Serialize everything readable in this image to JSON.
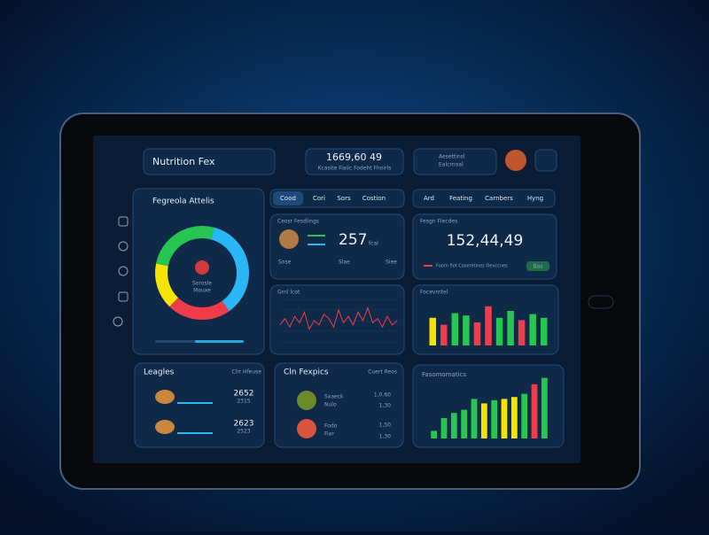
{
  "header": {
    "app_title": "Nutrition Fex",
    "summary_value": "1669,60 49",
    "summary_caption": "Kcasite Fiaiic Fodeht Fhoirls",
    "account_title": "Aesettinsl",
    "account_caption": "Ealcrnoal"
  },
  "tabs_left": [
    "Cood",
    "Cori",
    "Sors",
    "Costion"
  ],
  "tabs_right": [
    "Ard",
    "Feating",
    "Carnbers",
    "Hyng"
  ],
  "donut_panel": {
    "title": "Fegreola Attelis",
    "center_label": "Sorosle",
    "center_caption": "Mouxe",
    "segments": [
      {
        "color": "#29b6f6",
        "value": 36
      },
      {
        "color": "#ef3b4a",
        "value": 22
      },
      {
        "color": "#f5e400",
        "value": 16
      },
      {
        "color": "#27c653",
        "value": 26
      }
    ]
  },
  "calories_panel": {
    "title": "Ceosr Fesdlings",
    "value": "257",
    "unit": "fcal",
    "labels": [
      "Sose",
      "Slae",
      "Siee"
    ]
  },
  "goal_panel": {
    "title": "Fesgn Flecdes",
    "value": "152,44,49",
    "legend": "Foorn fiot Caseretines Oevccnes",
    "button": "Bas"
  },
  "line_panel": {
    "title": "Grnl lcot",
    "color": "#ef3b4a",
    "values": [
      40,
      55,
      35,
      60,
      45,
      70,
      30,
      50,
      40,
      65,
      55,
      35,
      75,
      45,
      60,
      40,
      70,
      50,
      80,
      45,
      55,
      35,
      60,
      40,
      50
    ]
  },
  "bars_panel": {
    "title": "Focevrntel",
    "bars": [
      {
        "color": "#f5e400",
        "value": 60
      },
      {
        "color": "#ef3b4a",
        "value": 45
      },
      {
        "color": "#27c653",
        "value": 70
      },
      {
        "color": "#27c653",
        "value": 65
      },
      {
        "color": "#ef3b4a",
        "value": 50
      },
      {
        "color": "#ef3b4a",
        "value": 85
      },
      {
        "color": "#27c653",
        "value": 60
      },
      {
        "color": "#27c653",
        "value": 75
      },
      {
        "color": "#ef3b4a",
        "value": 55
      },
      {
        "color": "#27c653",
        "value": 68
      },
      {
        "color": "#27c653",
        "value": 60
      }
    ]
  },
  "intake_panel": {
    "title": "Leagles",
    "link": "Clrr Hfeuse",
    "rows": [
      {
        "value": "2652",
        "caption": "2315"
      },
      {
        "value": "2623",
        "caption": "2523"
      }
    ]
  },
  "recipes_panel": {
    "title": "Cln Fexpics",
    "link": "Cuert Reos",
    "rows": [
      {
        "name": "Sxaeck",
        "caption": "Nulo",
        "values": [
          "1,0.60",
          "1,30"
        ]
      },
      {
        "name": "Fodo",
        "caption": "Fiar",
        "values": [
          "1,50",
          "1,30"
        ]
      }
    ]
  },
  "trends_panel": {
    "title": "Fasomomatics",
    "bars": [
      {
        "color": "#27c653",
        "value": 12
      },
      {
        "color": "#27c653",
        "value": 32
      },
      {
        "color": "#27c653",
        "value": 40
      },
      {
        "color": "#27c653",
        "value": 45
      },
      {
        "color": "#27c653",
        "value": 62
      },
      {
        "color": "#f5e400",
        "value": 55
      },
      {
        "color": "#27c653",
        "value": 60
      },
      {
        "color": "#f5e400",
        "value": 62
      },
      {
        "color": "#f5e400",
        "value": 65
      },
      {
        "color": "#27c653",
        "value": 70
      },
      {
        "color": "#ef3b4a",
        "value": 85
      },
      {
        "color": "#27c653",
        "value": 95
      }
    ]
  }
}
